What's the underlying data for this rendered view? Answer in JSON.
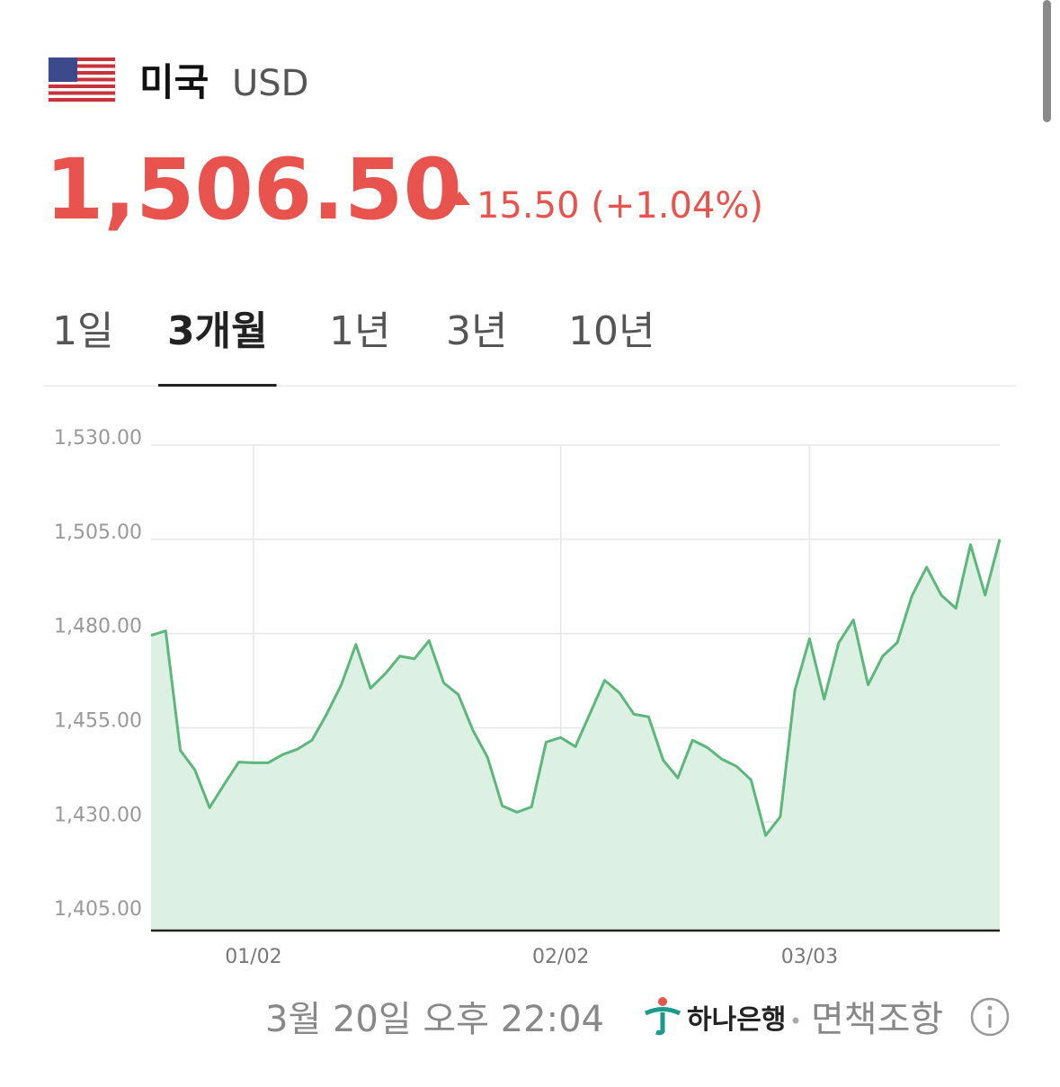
{
  "header": {
    "country": "미국",
    "currency": "USD"
  },
  "quote": {
    "price": "1,506.50",
    "change": "15.50 (+1.04%)"
  },
  "tabs": [
    "1일",
    "3개월",
    "1년",
    "3년",
    "10년"
  ],
  "active_tab": 1,
  "footer": {
    "timestamp": "3월 20일 오후 22:04",
    "provider": "하나은행",
    "disclaimer": "면책조항"
  },
  "chart_data": {
    "type": "line",
    "categories": [
      null,
      null,
      null,
      null,
      null,
      null,
      null,
      "01/02",
      null,
      null,
      null,
      null,
      null,
      null,
      null,
      null,
      null,
      null,
      null,
      null,
      null,
      null,
      null,
      null,
      null,
      null,
      null,
      null,
      "02/02",
      null,
      null,
      null,
      null,
      null,
      null,
      null,
      null,
      null,
      null,
      null,
      null,
      null,
      null,
      null,
      null,
      "03/03",
      null,
      null,
      null,
      null,
      null,
      null,
      null,
      null,
      null,
      null,
      null,
      null,
      null
    ],
    "series": [
      {
        "name": "USD",
        "color": "#5cb77a",
        "fill": "#dcf0e3",
        "values": [
          1479.5,
          1480.7,
          1449,
          1443.8,
          1433.8,
          1440,
          1445.9,
          1445.7,
          1445.7,
          1447.9,
          1449.3,
          1451.7,
          1458.6,
          1466.4,
          1477.1,
          1465.5,
          1469.3,
          1474,
          1473.3,
          1478.1,
          1466.9,
          1463.8,
          1454.3,
          1447.1,
          1434.3,
          1432.6,
          1434,
          1451.2,
          1452.4,
          1450,
          1458.8,
          1467.6,
          1464.3,
          1458.6,
          1457.9,
          1446.4,
          1441.7,
          1451.7,
          1449.8,
          1446.7,
          1444.8,
          1441.2,
          1426.4,
          1431.4,
          1465,
          1478.6,
          1462.6,
          1477.6,
          1483.6,
          1466.4,
          1474,
          1477.6,
          1490,
          1497.6,
          1490.2,
          1486.7,
          1503.6,
          1490.2,
          1505
        ]
      }
    ],
    "ylim": [
      1401.2,
      1530
    ],
    "yticks": [
      {
        "value": 1405,
        "label": "1,405.00"
      },
      {
        "value": 1430,
        "label": "1,430.00"
      },
      {
        "value": 1455,
        "label": "1,455.00"
      },
      {
        "value": 1480,
        "label": "1,480.00"
      },
      {
        "value": 1505,
        "label": "1,505.00"
      },
      {
        "value": 1530,
        "label": "1,530.00"
      }
    ],
    "grid": true
  }
}
